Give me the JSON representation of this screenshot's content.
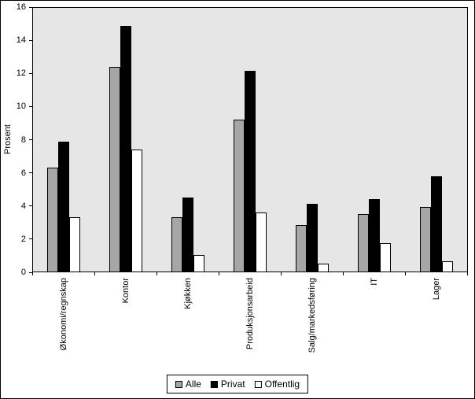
{
  "chart_data": {
    "type": "bar",
    "title": "",
    "xlabel": "",
    "ylabel": "Prosent",
    "ylim": [
      0,
      16
    ],
    "ytick_step": 2,
    "grid": false,
    "legend_position": "bottom",
    "plot_bg": "#e6e6e6",
    "bar_border": "#000000",
    "categories": [
      "Økonomi/regnskap",
      "Kontor",
      "Kjøkken",
      "Produksjonsarbeid",
      "Salg/markedsføring",
      "IT",
      "Lager"
    ],
    "series": [
      {
        "name": "Alle",
        "color": "#a6a6a6",
        "values": [
          6.3,
          12.4,
          3.3,
          9.2,
          2.8,
          3.5,
          3.9
        ]
      },
      {
        "name": "Privat",
        "color": "#000000",
        "values": [
          7.9,
          14.9,
          4.5,
          12.2,
          4.1,
          4.4,
          5.8
        ]
      },
      {
        "name": "Offentlig",
        "color": "#ffffff",
        "values": [
          3.3,
          7.4,
          1.0,
          3.6,
          0.5,
          1.7,
          0.6
        ]
      }
    ]
  }
}
